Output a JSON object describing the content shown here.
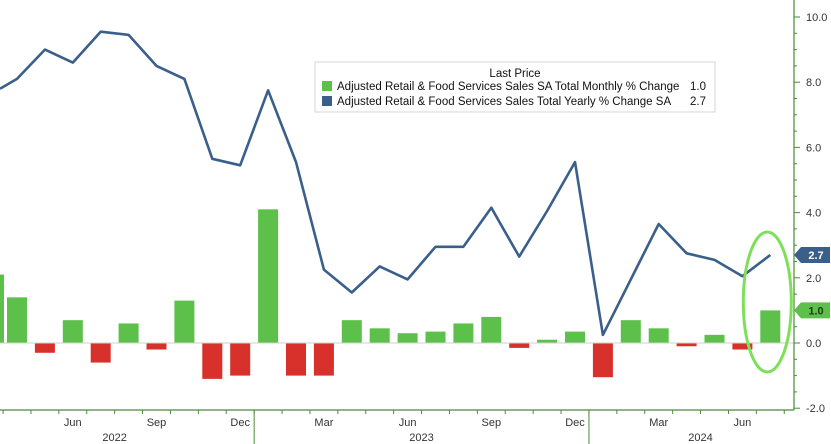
{
  "chart_data": {
    "type": "bar+line",
    "title": "",
    "legend": {
      "title": "Last Price",
      "placement": "top-right",
      "entries": [
        {
          "series": "monthly",
          "label": "Adjusted Retail & Food Services Sales SA Total Monthly % Change",
          "last_value": "1.0",
          "color": "#5cc04a"
        },
        {
          "series": "yearly",
          "label": "Adjusted Retail & Food Services Sales Total Yearly % Change SA",
          "last_value": "2.7",
          "color": "#3a5f8a"
        }
      ]
    },
    "y_axis": {
      "position": "right",
      "range": [
        -2,
        10
      ],
      "ticks": [
        "-2.0",
        "0.0",
        "2.0",
        "4.0",
        "6.0",
        "8.0",
        "10.0"
      ],
      "tick_values": [
        -2,
        0,
        2,
        4,
        6,
        8,
        10
      ],
      "grid": false
    },
    "x_axis": {
      "month_labels": [
        {
          "label": "Jun",
          "index": 2
        },
        {
          "label": "Sep",
          "index": 5
        },
        {
          "label": "Dec",
          "index": 8
        },
        {
          "label": "Mar",
          "index": 11
        },
        {
          "label": "Jun",
          "index": 14
        },
        {
          "label": "Sep",
          "index": 17
        },
        {
          "label": "Dec",
          "index": 20
        },
        {
          "label": "Mar",
          "index": 23
        },
        {
          "label": "Jun",
          "index": 26
        }
      ],
      "year_labels": [
        {
          "label": "2022",
          "index": 3.5
        },
        {
          "label": "2023",
          "index": 14.5
        },
        {
          "label": "2024",
          "index": 24.5
        }
      ]
    },
    "months": [
      "Apr 2022",
      "May 2022",
      "Jun 2022",
      "Jul 2022",
      "Aug 2022",
      "Sep 2022",
      "Oct 2022",
      "Nov 2022",
      "Dec 2022",
      "Jan 2023",
      "Feb 2023",
      "Mar 2023",
      "Apr 2023",
      "May 2023",
      "Jun 2023",
      "Jul 2023",
      "Aug 2023",
      "Sep 2023",
      "Oct 2023",
      "Nov 2023",
      "Dec 2023",
      "Jan 2024",
      "Feb 2024",
      "Mar 2024",
      "Apr 2024",
      "May 2024",
      "Jun 2024",
      "Jul 2024"
    ],
    "series": [
      {
        "name": "Adjusted Retail & Food Services Sales SA Total Monthly % Change",
        "key": "monthly",
        "kind": "bar",
        "positive_color": "#5cc04a",
        "negative_color": "#d8302a",
        "values": [
          1.4,
          -0.3,
          0.7,
          -0.6,
          0.6,
          -0.2,
          1.3,
          -1.1,
          -1.0,
          4.1,
          -1.0,
          -1.0,
          0.7,
          0.45,
          0.3,
          0.35,
          0.6,
          0.8,
          -0.15,
          0.1,
          0.35,
          -1.05,
          0.7,
          0.45,
          -0.1,
          0.25,
          -0.2,
          1.0
        ]
      },
      {
        "name": "Adjusted Retail & Food Services Sales Total Yearly % Change SA",
        "key": "yearly",
        "kind": "line",
        "color": "#3a5f8a",
        "values": [
          8.1,
          9.0,
          8.6,
          9.55,
          9.45,
          8.5,
          8.1,
          5.65,
          5.45,
          7.75,
          5.55,
          2.25,
          1.55,
          2.35,
          1.95,
          2.95,
          2.95,
          4.15,
          2.65,
          4.05,
          5.55,
          0.25,
          1.95,
          3.65,
          2.75,
          2.55,
          2.05,
          2.7
        ]
      }
    ],
    "partial_bar_at_left_edge": 2.1,
    "line_value_at_left_edge": 7.8,
    "last_value_badges": [
      {
        "series": "yearly",
        "text": "2.7",
        "value": 2.7,
        "color": "#3a5f8a",
        "text_color": "#ffffff"
      },
      {
        "series": "monthly",
        "text": "1.0",
        "value": 1.0,
        "color": "#5cc04a",
        "text_color": "#1a3d12"
      }
    ],
    "annotation": {
      "type": "ellipse-highlight",
      "target_index": 27,
      "color": "#7ee05a"
    }
  }
}
